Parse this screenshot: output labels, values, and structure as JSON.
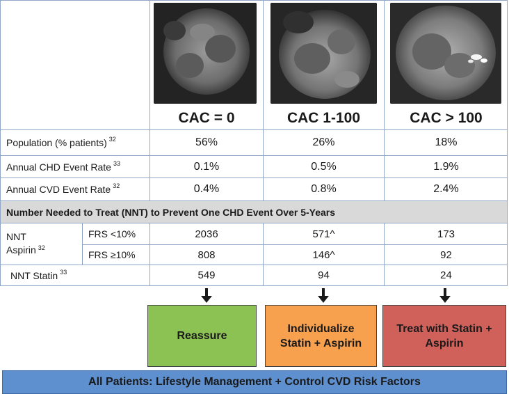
{
  "columns": [
    {
      "header": "CAC = 0",
      "scan_icon": "ct-scan-image"
    },
    {
      "header": "CAC 1-100",
      "scan_icon": "ct-scan-image"
    },
    {
      "header": "CAC > 100",
      "scan_icon": "ct-scan-image-calcified"
    }
  ],
  "rows": {
    "population": {
      "label": "Population (% patients)",
      "ref": "32",
      "values": [
        "56%",
        "26%",
        "18%"
      ]
    },
    "chd": {
      "label": "Annual CHD Event Rate",
      "ref": "33",
      "values": [
        "0.1%",
        "0.5%",
        "1.9%"
      ]
    },
    "cvd": {
      "label": "Annual CVD Event Rate",
      "ref": "32",
      "values": [
        "0.4%",
        "0.8%",
        "2.4%"
      ]
    }
  },
  "nnt_section_title": "Number Needed to Treat (NNT) to Prevent One CHD Event Over 5-Years",
  "aspirin": {
    "label_line1": "NNT",
    "label_line2": "Aspirin",
    "ref": "32",
    "sub_rows": [
      {
        "label": "FRS <10%",
        "values": [
          "2036",
          "571^",
          "173"
        ]
      },
      {
        "label": "FRS ≥10%",
        "values": [
          "808",
          "146^",
          "92"
        ]
      }
    ]
  },
  "statin": {
    "label": "NNT Statin",
    "ref": "33",
    "values": [
      "549",
      "94",
      "24"
    ]
  },
  "recommendations": [
    {
      "text": "Reassure",
      "color": "#8cc153"
    },
    {
      "text": "Individualize Statin + Aspirin",
      "color": "#f7a04d"
    },
    {
      "text": "Treat with Statin + Aspirin",
      "color": "#d0605a"
    }
  ],
  "footer": {
    "text": "All Patients:  Lifestyle Management + Control CVD Risk Factors",
    "color": "#5e8fce"
  },
  "colors": {
    "grid": "#8fa6c8",
    "section_bg": "#d9d9d9",
    "arrow": "#1a1a1a"
  }
}
